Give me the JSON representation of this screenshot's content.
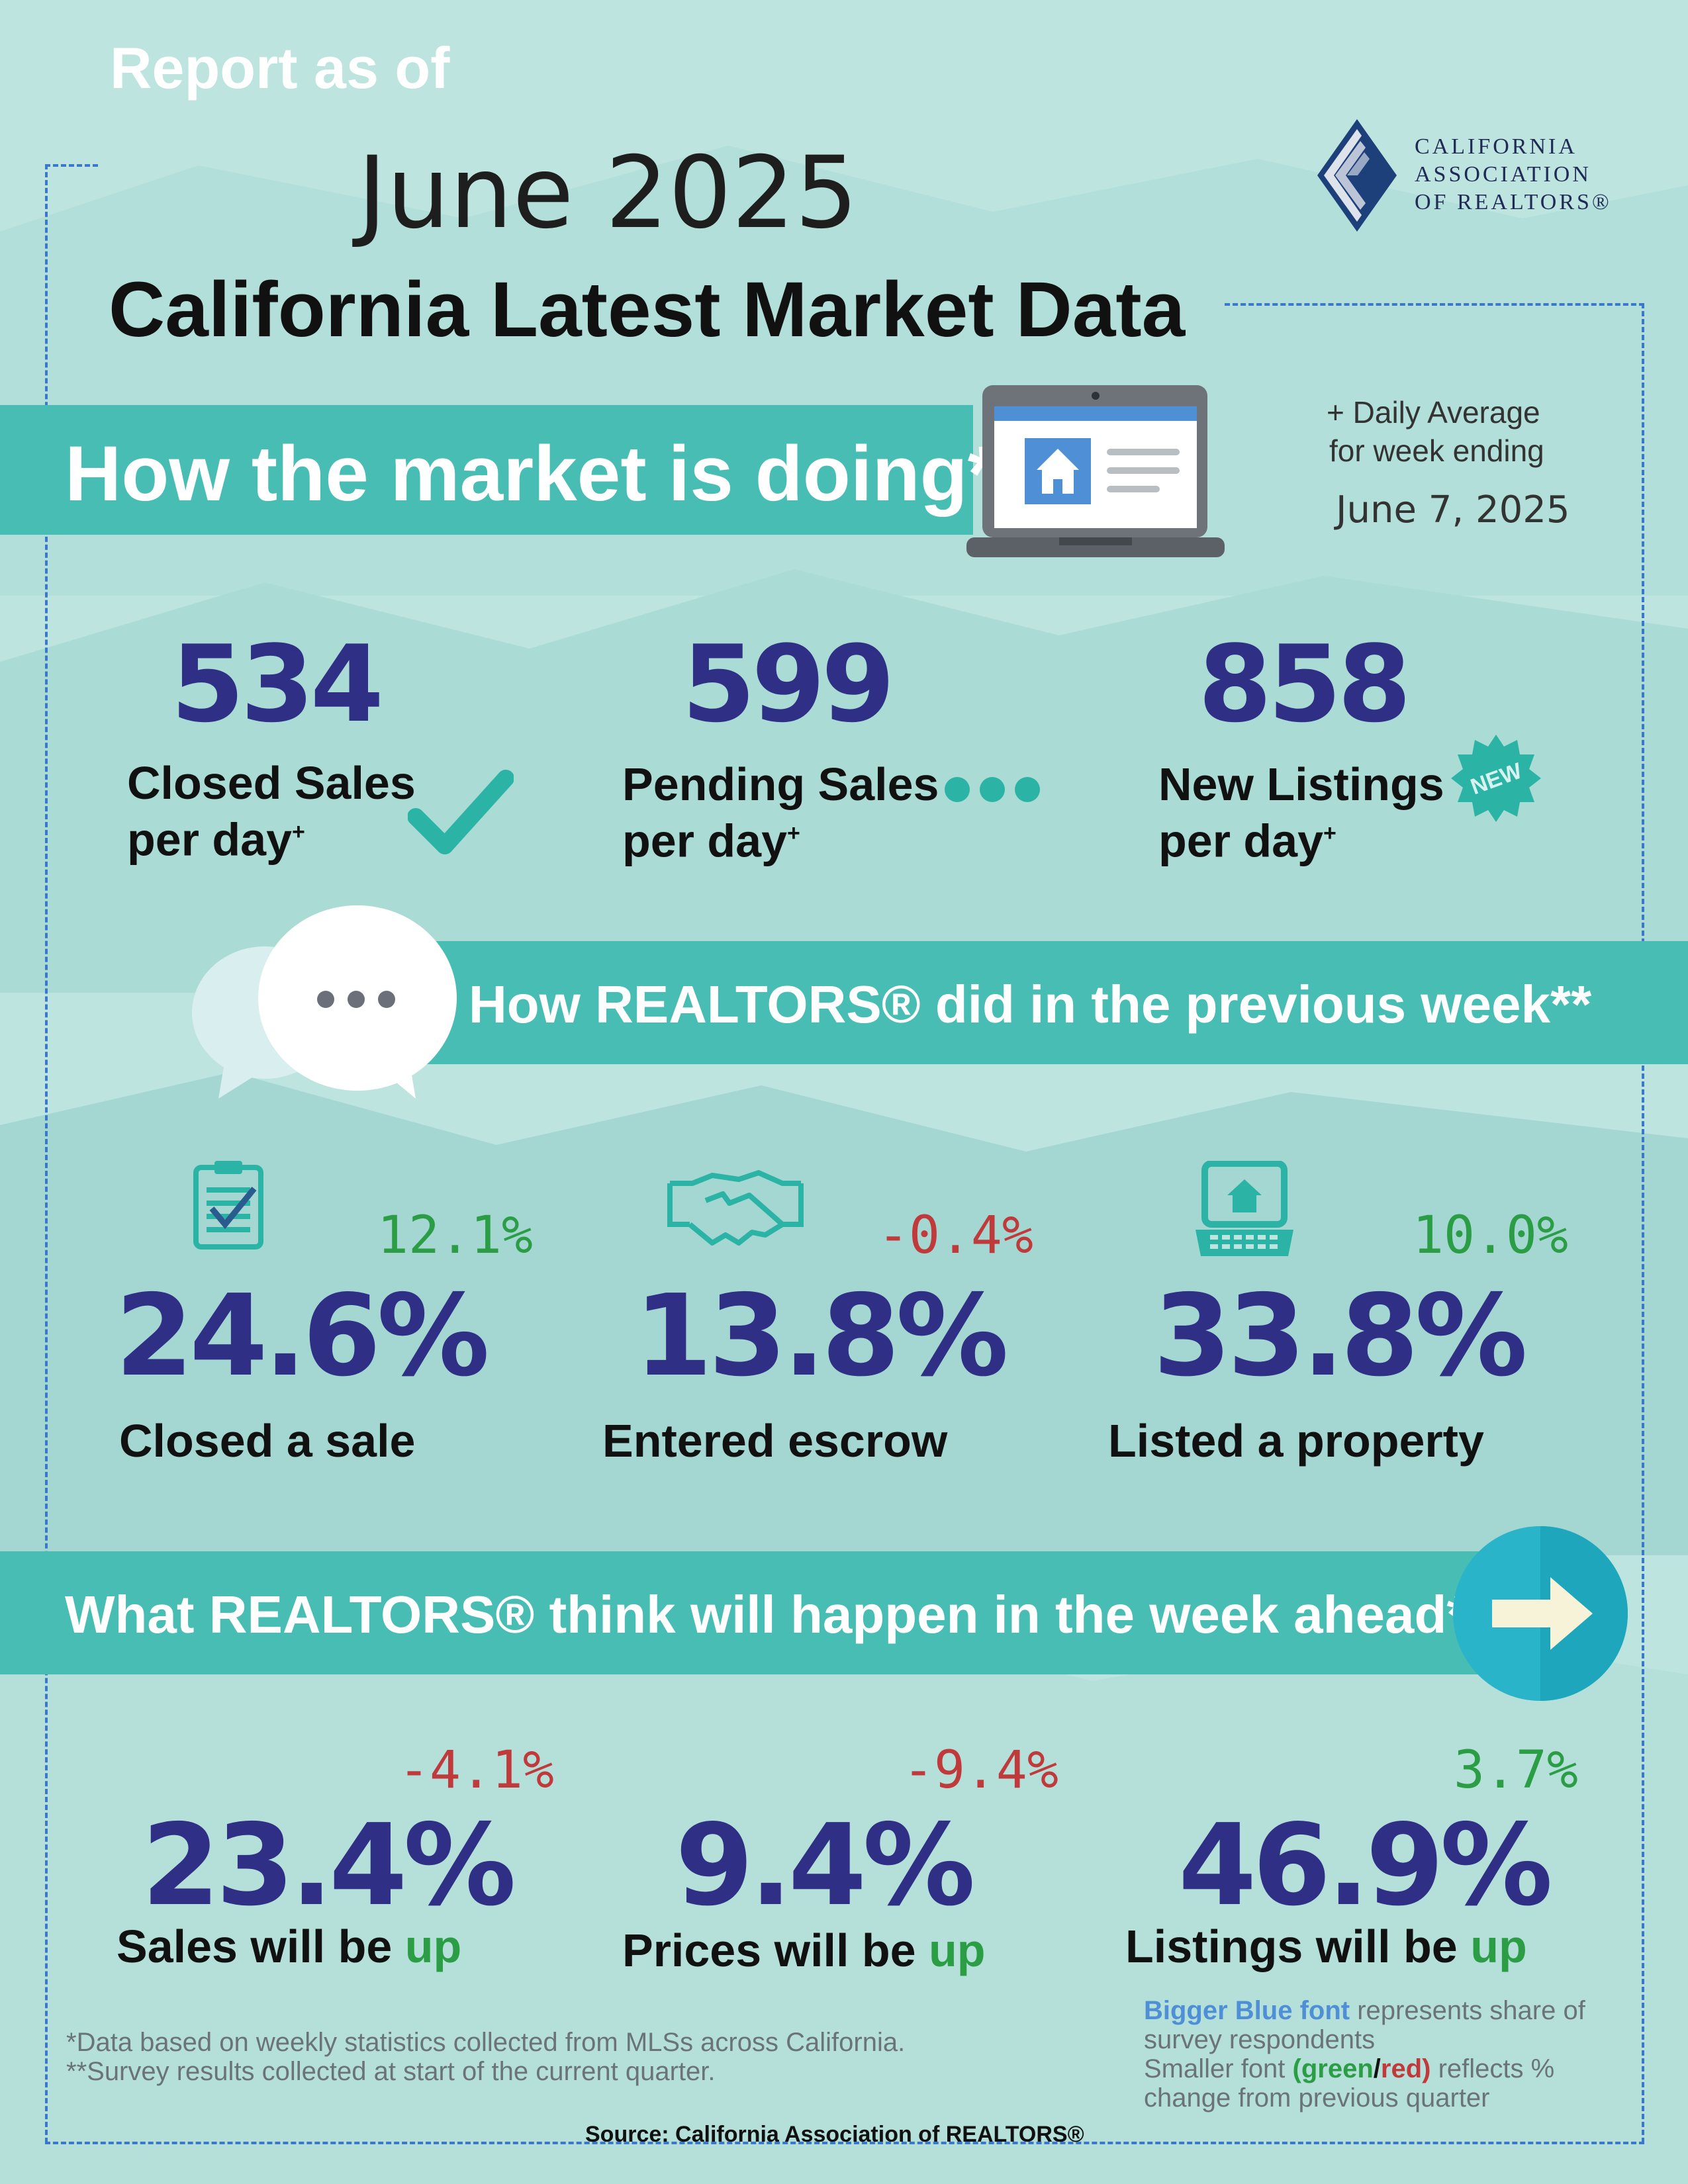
{
  "header": {
    "report_as_of": "Report as of",
    "month": "June 2025",
    "title": "California Latest Market Data"
  },
  "logo": {
    "line1": "CALIFORNIA",
    "line2": "ASSOCIATION",
    "line3": "OF REALTORS®",
    "icon": "car-diamond-logo-icon"
  },
  "market": {
    "heading": "How the market is doing*",
    "daily_avg_line1": "+ Daily Average",
    "daily_avg_line2": "for week ending",
    "week_date": "June 7, 2025",
    "items": [
      {
        "value": "534",
        "label_line1": "Closed Sales",
        "label_line2": "per day",
        "marker": "+",
        "icon": "checkmark-icon"
      },
      {
        "value": "599",
        "label_line1": "Pending Sales",
        "label_line2": "per day",
        "marker": "+",
        "icon": "three-dots-icon"
      },
      {
        "value": "858",
        "label_line1": "New Listings",
        "label_line2": "per day",
        "marker": "+",
        "icon": "new-badge-icon",
        "badge_text": "NEW"
      }
    ]
  },
  "previous_week": {
    "heading": "How REALTORS® did in the previous week**",
    "items": [
      {
        "value": "24.6%",
        "change": "12.1%",
        "change_color": "#2a9d45",
        "label": "Closed a sale",
        "icon": "clipboard-check-icon"
      },
      {
        "value": "13.8%",
        "change": "-0.4%",
        "change_color": "#c0393b",
        "label": "Entered escrow",
        "icon": "handshake-icon"
      },
      {
        "value": "33.8%",
        "change": "10.0%",
        "change_color": "#2a9d45",
        "label": "Listed a property",
        "icon": "laptop-house-icon"
      }
    ]
  },
  "week_ahead": {
    "heading": "What REALTORS® think will happen in the week ahead**",
    "items": [
      {
        "value": "23.4%",
        "change": "-4.1%",
        "change_color": "#c0393b",
        "label_prefix": "Sales will be",
        "label_suffix": "up"
      },
      {
        "value": "9.4%",
        "change": "-9.4%",
        "change_color": "#c0393b",
        "label_prefix": "Prices will be",
        "label_suffix": "up"
      },
      {
        "value": "46.9%",
        "change": "3.7%",
        "change_color": "#2a9d45",
        "label_prefix": "Listings will be",
        "label_suffix": "up"
      }
    ]
  },
  "footer": {
    "note1": "*Data based on weekly statistics collected from MLSs across California.",
    "note2": "**Survey results collected at start of the current quarter.",
    "source": "Source: California Association of REALTORS®",
    "legend": {
      "blue_part": "Bigger Blue font",
      "blue_rest": " represents share of",
      "line2": "survey respondents",
      "line3_prefix": "Smaller font ",
      "open_paren": "(",
      "green": "green",
      "slash": "/",
      "red": "red",
      "close_paren": ")",
      "line3_suffix": " reflects %",
      "line4": "change from previous quarter"
    }
  },
  "colors": {
    "background": "#b7e2dc",
    "banner": "#48bdb4",
    "navy": "#2f2f85",
    "green": "#2a9d45",
    "red": "#c0393b",
    "dashed_border": "#3b78c9"
  }
}
